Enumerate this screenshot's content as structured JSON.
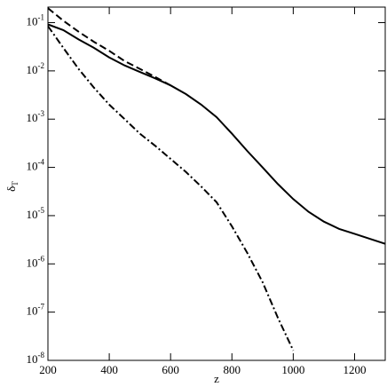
{
  "chart_data": {
    "type": "line",
    "xlabel": "z",
    "ylabel": {
      "base": "δ",
      "sub": "T"
    },
    "log_y": true,
    "x": [
      200,
      250,
      300,
      350,
      400,
      450,
      500,
      550,
      600,
      650,
      700,
      750,
      800,
      850,
      900,
      950,
      1000,
      1050,
      1100,
      1150,
      1200,
      1250,
      1300
    ],
    "series": [
      {
        "color": "#000000",
        "dash": "solid",
        "values": [
          0.092,
          0.07,
          0.045,
          0.03,
          0.019,
          0.013,
          0.0095,
          0.007,
          0.005,
          0.0033,
          0.002,
          0.0011,
          0.0005,
          0.00022,
          0.0001,
          4.5e-05,
          2.2e-05,
          1.2e-05,
          7.5e-06,
          5.3e-06,
          4.2e-06,
          3.3e-06,
          2.6e-06
        ]
      },
      {
        "color": "#000000",
        "dash": "dashed",
        "values": [
          0.2,
          0.11,
          0.065,
          0.04,
          0.026,
          0.016,
          0.011,
          0.0075,
          0.005,
          null,
          null,
          null,
          null,
          null,
          null,
          null,
          null,
          null,
          null,
          null,
          null,
          null,
          null
        ]
      },
      {
        "color": "#000000",
        "dash": "dashdot",
        "values": [
          0.085,
          0.03,
          0.011,
          0.0045,
          0.002,
          0.001,
          0.0005,
          0.00028,
          0.00015,
          8e-05,
          4e-05,
          1.9e-05,
          6e-06,
          1.7e-06,
          4.2e-07,
          7.6e-08,
          1.6e-08,
          null,
          null,
          null,
          null,
          null,
          null
        ]
      }
    ],
    "xlim": [
      200,
      1300
    ],
    "xticks": [
      200,
      400,
      600,
      800,
      1000,
      1200
    ],
    "ylim": [
      1e-08,
      0.21
    ],
    "yticks": [
      {
        "value": 1e-08,
        "label": "10-8"
      },
      {
        "value": 1e-07,
        "label": "10-7"
      },
      {
        "value": 1e-06,
        "label": "10-6"
      },
      {
        "value": 1e-05,
        "label": "10-5"
      },
      {
        "value": 0.0001,
        "label": "10-4"
      },
      {
        "value": 0.001,
        "label": "10-3"
      },
      {
        "value": 0.01,
        "label": "10-2"
      },
      {
        "value": 0.1,
        "label": "10-1"
      }
    ]
  }
}
